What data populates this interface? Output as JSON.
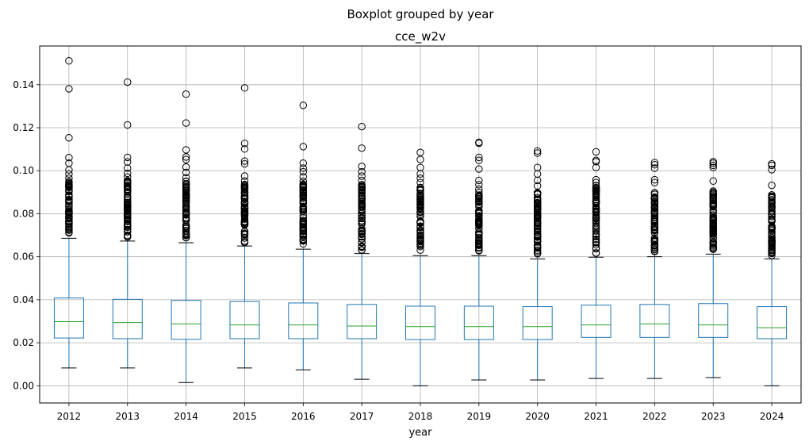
{
  "chart_data": {
    "type": "boxplot",
    "suptitle": "Boxplot grouped by year",
    "title": "cce_w2v",
    "xlabel": "year",
    "ylabel": "",
    "ylim": [
      -0.008,
      0.158
    ],
    "yticks": [
      0.0,
      0.02,
      0.04,
      0.06,
      0.08,
      0.1,
      0.12,
      0.14
    ],
    "ytick_labels": [
      "0.00",
      "0.02",
      "0.04",
      "0.06",
      "0.08",
      "0.10",
      "0.12",
      "0.14"
    ],
    "grid": true,
    "colors": {
      "box": "#1f77b4",
      "median": "#2ca02c",
      "whisker_cap": "#000000",
      "outlier": "#000000",
      "grid": "#b0b0b0"
    },
    "categories": [
      "2012",
      "2013",
      "2014",
      "2015",
      "2016",
      "2017",
      "2018",
      "2019",
      "2020",
      "2021",
      "2022",
      "2023",
      "2024"
    ],
    "boxes": [
      {
        "year": "2012",
        "q1": 0.0222,
        "median": 0.0298,
        "q3": 0.0408,
        "whisker_low": 0.0083,
        "whisker_high": 0.0686,
        "outliers": [
          0.1511,
          0.1381,
          0.1153,
          0.1061,
          0.1035,
          0.1004,
          0.0985,
          0.0965
        ]
      },
      {
        "year": "2013",
        "q1": 0.0219,
        "median": 0.0294,
        "q3": 0.0402,
        "whisker_low": 0.0083,
        "whisker_high": 0.0673,
        "outliers": [
          0.1412,
          0.1213,
          0.1062,
          0.1041,
          0.1012,
          0.0988,
          0.0971
        ]
      },
      {
        "year": "2014",
        "q1": 0.0216,
        "median": 0.0288,
        "q3": 0.0397,
        "whisker_low": 0.0015,
        "whisker_high": 0.0665,
        "outliers": [
          0.1356,
          0.1222,
          0.1097,
          0.1064,
          0.1052,
          0.1017,
          0.0992,
          0.0968
        ]
      },
      {
        "year": "2015",
        "q1": 0.0219,
        "median": 0.0283,
        "q3": 0.0392,
        "whisker_low": 0.0083,
        "whisker_high": 0.065,
        "outliers": [
          0.1385,
          0.1127,
          0.1101,
          0.1045,
          0.1032,
          0.0975,
          0.0952
        ]
      },
      {
        "year": "2016",
        "q1": 0.0219,
        "median": 0.0283,
        "q3": 0.0385,
        "whisker_low": 0.0074,
        "whisker_high": 0.0635,
        "outliers": [
          0.1304,
          0.1112,
          0.1035,
          0.1012,
          0.0995,
          0.0972,
          0.0951
        ]
      },
      {
        "year": "2017",
        "q1": 0.0219,
        "median": 0.0278,
        "q3": 0.0378,
        "whisker_low": 0.003,
        "whisker_high": 0.0615,
        "outliers": [
          0.1205,
          0.1105,
          0.102,
          0.0995,
          0.0975,
          0.0955
        ]
      },
      {
        "year": "2018",
        "q1": 0.0215,
        "median": 0.0275,
        "q3": 0.037,
        "whisker_low": 0.0,
        "whisker_high": 0.0605,
        "outliers": [
          0.1085,
          0.1052,
          0.1015,
          0.0985,
          0.0965,
          0.0945
        ]
      },
      {
        "year": "2019",
        "q1": 0.0215,
        "median": 0.0275,
        "q3": 0.037,
        "whisker_low": 0.0027,
        "whisker_high": 0.0605,
        "outliers": [
          0.1132,
          0.1128,
          0.1062,
          0.1048,
          0.1008,
          0.0955,
          0.0935
        ]
      },
      {
        "year": "2020",
        "q1": 0.0215,
        "median": 0.0275,
        "q3": 0.0368,
        "whisker_low": 0.0027,
        "whisker_high": 0.059,
        "outliers": [
          0.1092,
          0.1082,
          0.1015,
          0.0985,
          0.0955,
          0.093
        ]
      },
      {
        "year": "2021",
        "q1": 0.0225,
        "median": 0.0283,
        "q3": 0.0375,
        "whisker_low": 0.0034,
        "whisker_high": 0.0598,
        "outliers": [
          0.1088,
          0.1048,
          0.1042,
          0.1015,
          0.0958,
          0.0945
        ]
      },
      {
        "year": "2022",
        "q1": 0.0225,
        "median": 0.0288,
        "q3": 0.0378,
        "whisker_low": 0.0034,
        "whisker_high": 0.06,
        "outliers": [
          0.1038,
          0.1028,
          0.1012,
          0.0958,
          0.0945
        ]
      },
      {
        "year": "2023",
        "q1": 0.0225,
        "median": 0.0283,
        "q3": 0.0382,
        "whisker_low": 0.0038,
        "whisker_high": 0.0612,
        "outliers": [
          0.1042,
          0.1035,
          0.1025,
          0.1015,
          0.0952
        ]
      },
      {
        "year": "2024",
        "q1": 0.0219,
        "median": 0.027,
        "q3": 0.0368,
        "whisker_low": 0.0,
        "whisker_high": 0.059,
        "outliers": [
          0.1032,
          0.1025,
          0.1005,
          0.0932
        ]
      }
    ],
    "dense_outlier_ranges": [
      {
        "year": "2012",
        "from": 0.0686,
        "to": 0.095
      },
      {
        "year": "2013",
        "from": 0.0673,
        "to": 0.096
      },
      {
        "year": "2014",
        "from": 0.0665,
        "to": 0.0955
      },
      {
        "year": "2015",
        "from": 0.065,
        "to": 0.094
      },
      {
        "year": "2016",
        "from": 0.0635,
        "to": 0.094
      },
      {
        "year": "2017",
        "from": 0.0615,
        "to": 0.094
      },
      {
        "year": "2018",
        "from": 0.0605,
        "to": 0.093
      },
      {
        "year": "2019",
        "from": 0.0605,
        "to": 0.092
      },
      {
        "year": "2020",
        "from": 0.059,
        "to": 0.091
      },
      {
        "year": "2021",
        "from": 0.0598,
        "to": 0.093
      },
      {
        "year": "2022",
        "from": 0.06,
        "to": 0.09
      },
      {
        "year": "2023",
        "from": 0.0612,
        "to": 0.091
      },
      {
        "year": "2024",
        "from": 0.059,
        "to": 0.089
      }
    ]
  }
}
